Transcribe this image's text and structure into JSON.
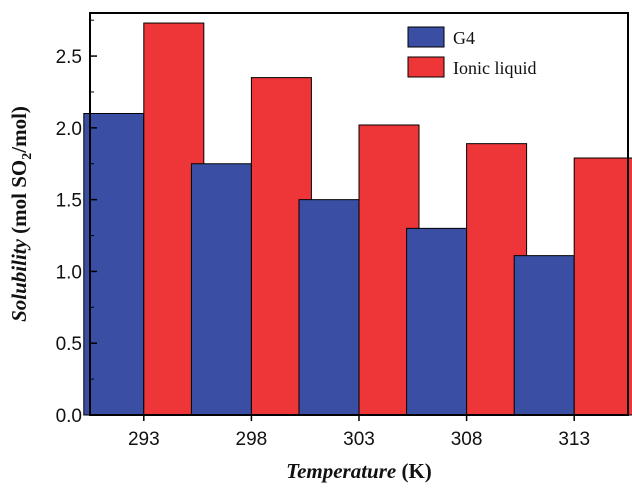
{
  "chart_data": {
    "type": "bar",
    "categories": [
      "293",
      "298",
      "303",
      "308",
      "313"
    ],
    "series": [
      {
        "name": "G4",
        "color": "#3a4fa3",
        "values": [
          2.1,
          1.75,
          1.5,
          1.3,
          1.11
        ]
      },
      {
        "name": "Ionic liquid",
        "color": "#ee3638",
        "values": [
          2.73,
          2.35,
          2.02,
          1.89,
          1.79
        ]
      }
    ],
    "ylim": [
      0,
      2.8
    ],
    "yticks": [
      "0.0",
      "0.5",
      "1.0",
      "1.5",
      "2.0",
      "2.5"
    ],
    "xlabel": {
      "italic_part": "Temperature",
      "plain_part": " (K)"
    },
    "ylabel": {
      "italic_part": "Solubility",
      "plain_part": " (mol SO",
      "subscript": "2",
      "suffix": "/mol)"
    },
    "legend_placement": "top-right",
    "grid": false
  }
}
